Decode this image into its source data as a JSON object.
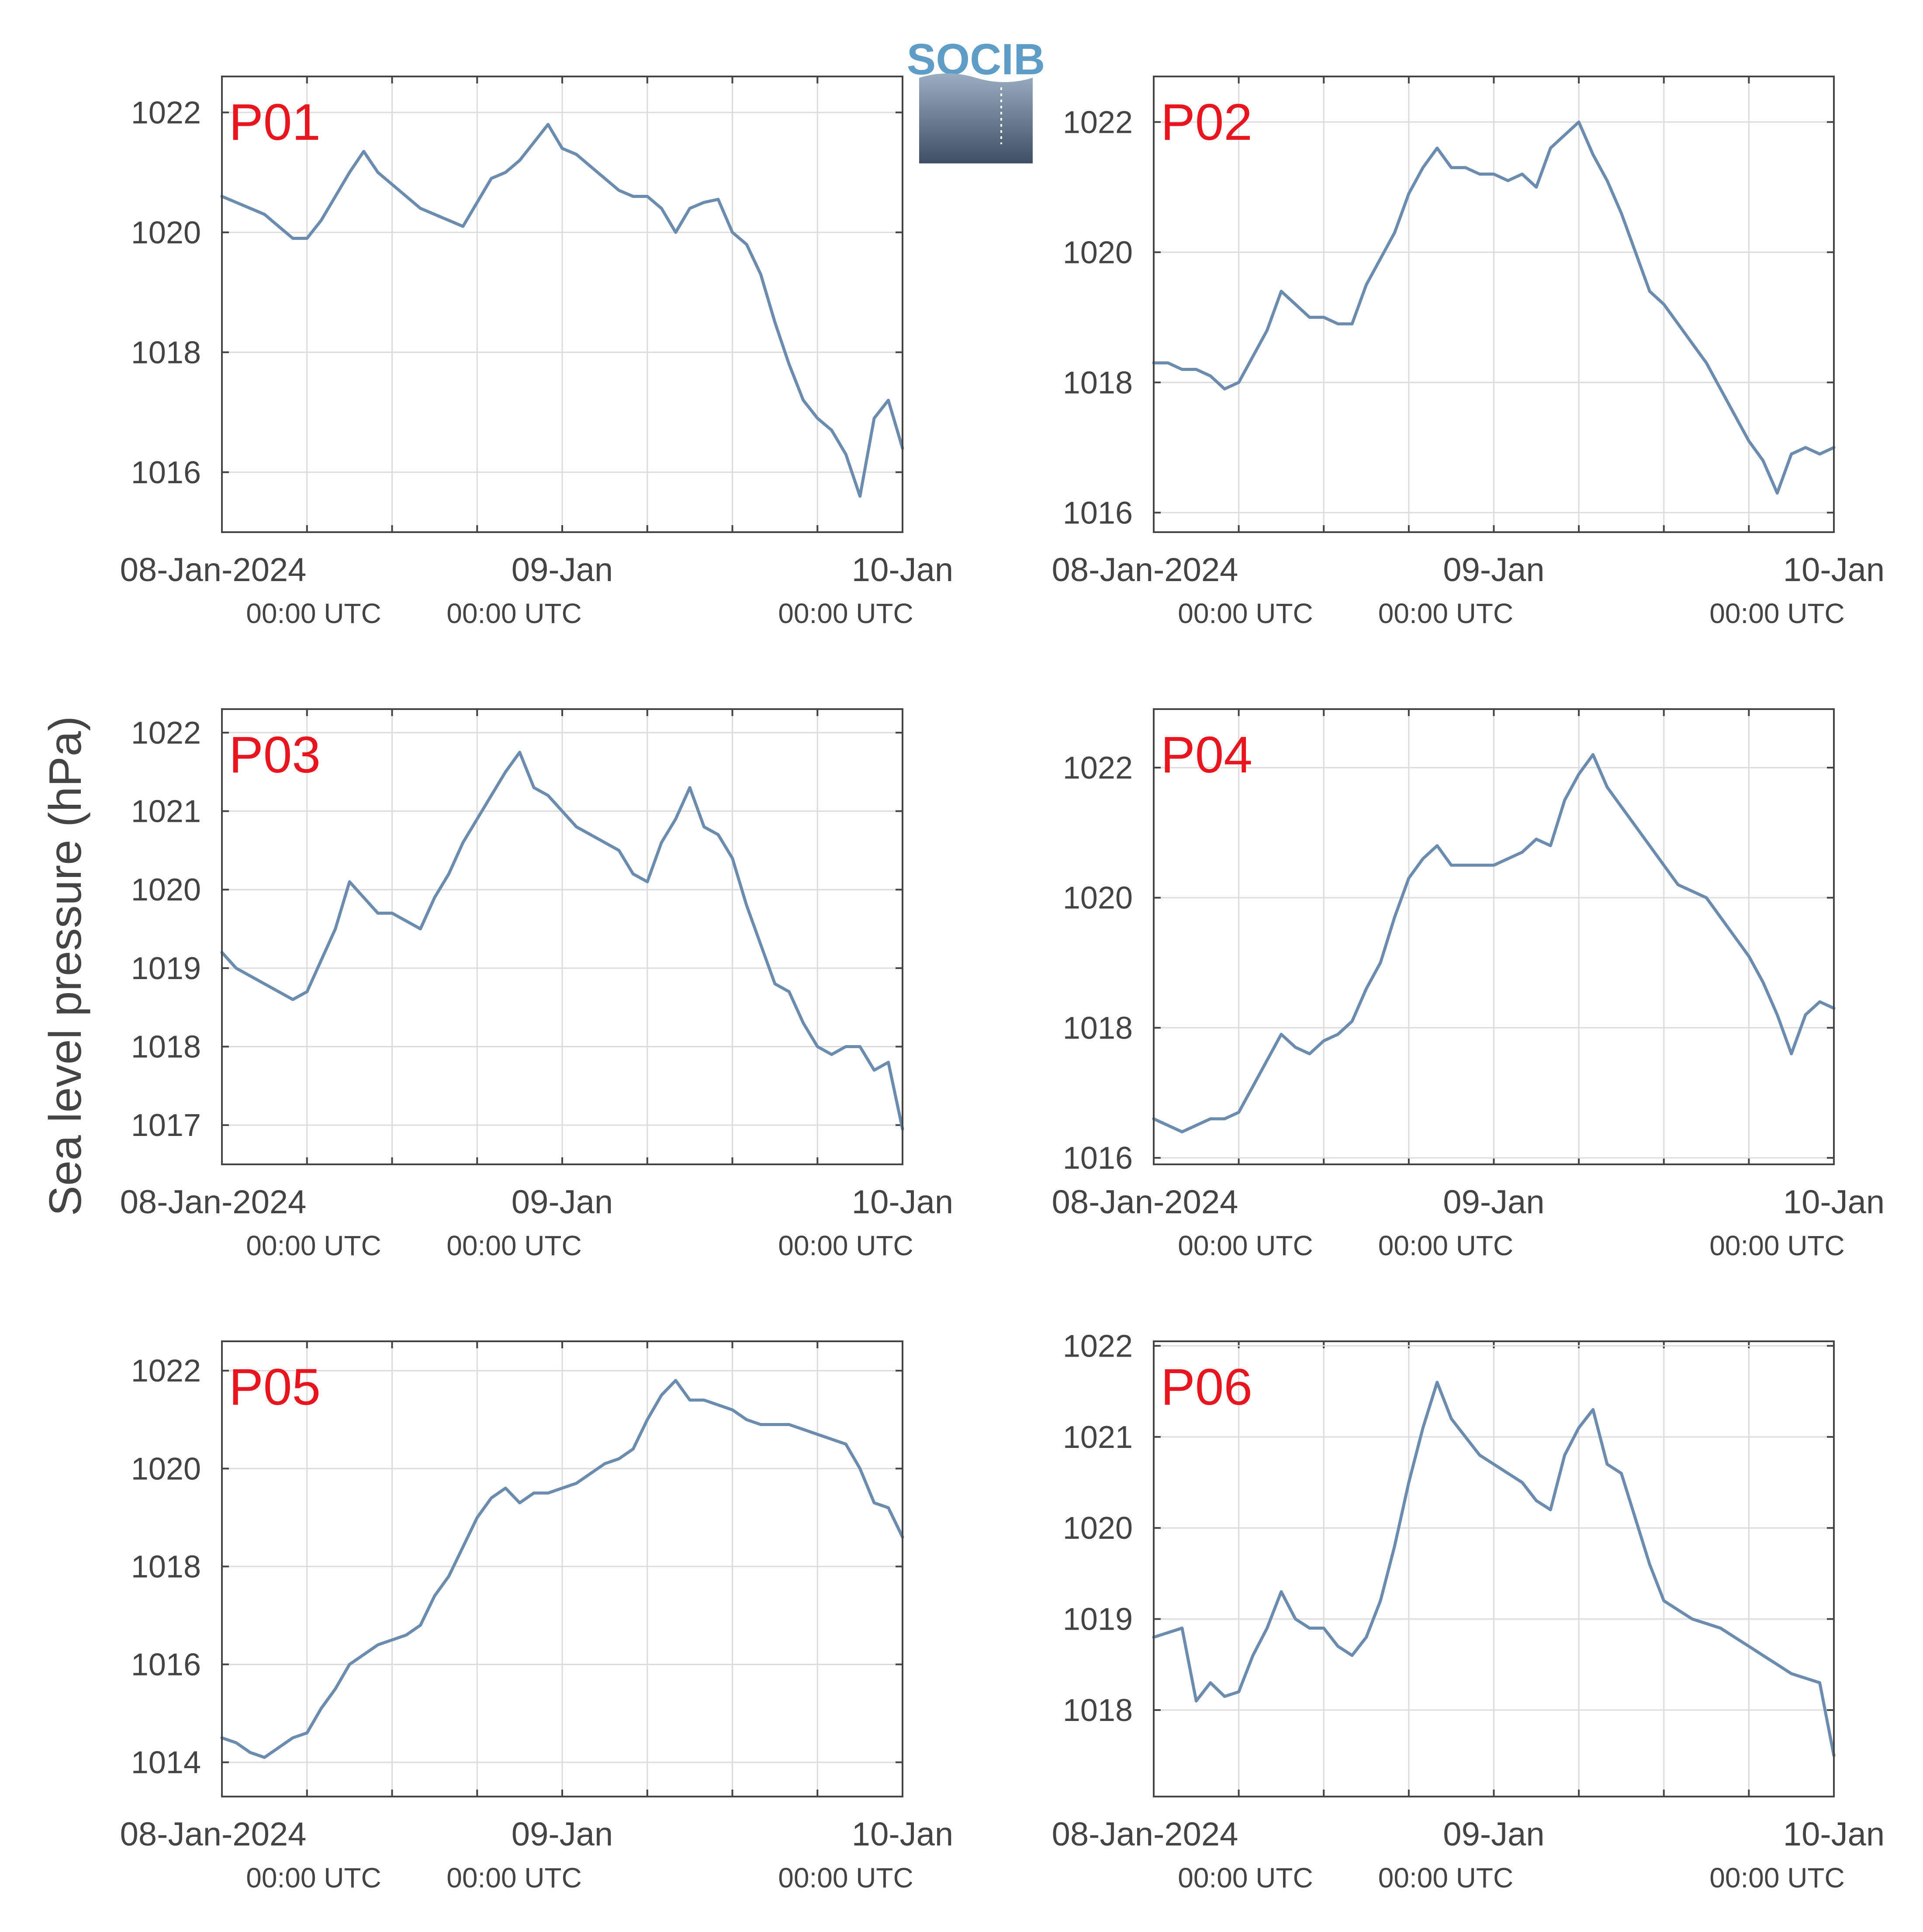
{
  "figure": {
    "ylabel": "Sea level pressure (hPa)",
    "logo_text": "SOCIB",
    "x_tick_labels": [
      "08-Jan-2024",
      "09-Jan",
      "10-Jan"
    ],
    "x_tick_sublabels": [
      "00:00 UTC",
      "00:00 UTC",
      "00:00 UTC"
    ],
    "colors": {
      "line": "#6b8cae",
      "panel_label": "#e8141e",
      "grid": "#dcdcdc",
      "axis": "#444444",
      "text": "#444444"
    }
  },
  "chart_data": [
    {
      "type": "line",
      "label": "P01",
      "xlim": [
        "2024-01-08T00:00Z",
        "2024-01-10T00:00Z"
      ],
      "ylim": [
        1015.0,
        1022.6
      ],
      "yticks": [
        1016,
        1018,
        1020,
        1022
      ],
      "grid": true,
      "series": [
        {
          "x_hours": [
            0,
            1,
            2,
            3,
            4,
            5,
            6,
            7,
            8,
            9,
            10,
            11,
            12,
            13,
            14,
            15,
            16,
            17,
            18,
            19,
            20,
            21,
            22,
            23,
            24,
            25,
            26,
            27,
            28,
            29,
            30,
            31,
            32,
            33,
            34,
            35,
            36,
            37,
            38,
            39,
            40,
            41,
            42,
            43,
            44,
            45,
            46,
            47,
            48
          ],
          "values": [
            1020.6,
            1020.5,
            1020.4,
            1020.3,
            1020.1,
            1019.9,
            1019.9,
            1020.2,
            1020.6,
            1021.0,
            1021.35,
            1021.0,
            1020.8,
            1020.6,
            1020.4,
            1020.3,
            1020.2,
            1020.1,
            1020.5,
            1020.9,
            1021.0,
            1021.2,
            1021.5,
            1021.8,
            1021.4,
            1021.3,
            1021.1,
            1020.9,
            1020.7,
            1020.6,
            1020.6,
            1020.4,
            1020.0,
            1020.4,
            1020.5,
            1020.55,
            1020.0,
            1019.8,
            1019.3,
            1018.5,
            1017.8,
            1017.2,
            1016.9,
            1016.7,
            1016.3,
            1015.6,
            1016.9,
            1017.2,
            1016.4
          ]
        }
      ]
    },
    {
      "type": "line",
      "label": "P02",
      "xlim": [
        "2024-01-08T00:00Z",
        "2024-01-10T00:00Z"
      ],
      "ylim": [
        1015.7,
        1022.7
      ],
      "yticks": [
        1016,
        1018,
        1020,
        1022
      ],
      "grid": true,
      "series": [
        {
          "x_hours": [
            0,
            1,
            2,
            3,
            4,
            5,
            6,
            7,
            8,
            9,
            10,
            11,
            12,
            13,
            14,
            15,
            16,
            17,
            18,
            19,
            20,
            21,
            22,
            23,
            24,
            25,
            26,
            27,
            28,
            29,
            30,
            31,
            32,
            33,
            34,
            35,
            36,
            37,
            38,
            39,
            40,
            41,
            42,
            43,
            44,
            45,
            46,
            47,
            48
          ],
          "values": [
            1018.3,
            1018.3,
            1018.2,
            1018.2,
            1018.1,
            1017.9,
            1018.0,
            1018.4,
            1018.8,
            1019.4,
            1019.2,
            1019.0,
            1019.0,
            1018.9,
            1018.9,
            1019.5,
            1019.9,
            1020.3,
            1020.9,
            1021.3,
            1021.6,
            1021.3,
            1021.3,
            1021.2,
            1021.2,
            1021.1,
            1021.2,
            1021.0,
            1021.6,
            1021.8,
            1022.0,
            1021.5,
            1021.1,
            1020.6,
            1020.0,
            1019.4,
            1019.2,
            1018.9,
            1018.6,
            1018.3,
            1017.9,
            1017.5,
            1017.1,
            1016.8,
            1016.3,
            1016.9,
            1017.0,
            1016.9,
            1017.0
          ]
        }
      ]
    },
    {
      "type": "line",
      "label": "P03",
      "xlim": [
        "2024-01-08T00:00Z",
        "2024-01-10T00:00Z"
      ],
      "ylim": [
        1016.5,
        1022.3
      ],
      "yticks": [
        1017,
        1018,
        1019,
        1020,
        1021,
        1022
      ],
      "grid": true,
      "series": [
        {
          "x_hours": [
            0,
            1,
            2,
            3,
            4,
            5,
            6,
            7,
            8,
            9,
            10,
            11,
            12,
            13,
            14,
            15,
            16,
            17,
            18,
            19,
            20,
            21,
            22,
            23,
            24,
            25,
            26,
            27,
            28,
            29,
            30,
            31,
            32,
            33,
            34,
            35,
            36,
            37,
            38,
            39,
            40,
            41,
            42,
            43,
            44,
            45,
            46,
            47,
            48
          ],
          "values": [
            1019.2,
            1019.0,
            1018.9,
            1018.8,
            1018.7,
            1018.6,
            1018.7,
            1019.1,
            1019.5,
            1020.1,
            1019.9,
            1019.7,
            1019.7,
            1019.6,
            1019.5,
            1019.9,
            1020.2,
            1020.6,
            1020.9,
            1021.2,
            1021.5,
            1021.75,
            1021.3,
            1021.2,
            1021.0,
            1020.8,
            1020.7,
            1020.6,
            1020.5,
            1020.2,
            1020.1,
            1020.6,
            1020.9,
            1021.3,
            1020.8,
            1020.7,
            1020.4,
            1019.8,
            1019.3,
            1018.8,
            1018.7,
            1018.3,
            1018.0,
            1017.9,
            1018.0,
            1018.0,
            1017.7,
            1017.8,
            1016.95
          ]
        }
      ]
    },
    {
      "type": "line",
      "label": "P04",
      "xlim": [
        "2024-01-08T00:00Z",
        "2024-01-10T00:00Z"
      ],
      "ylim": [
        1015.9,
        1022.9
      ],
      "yticks": [
        1016,
        1018,
        1020,
        1022
      ],
      "grid": true,
      "series": [
        {
          "x_hours": [
            0,
            1,
            2,
            3,
            4,
            5,
            6,
            7,
            8,
            9,
            10,
            11,
            12,
            13,
            14,
            15,
            16,
            17,
            18,
            19,
            20,
            21,
            22,
            23,
            24,
            25,
            26,
            27,
            28,
            29,
            30,
            31,
            32,
            33,
            34,
            35,
            36,
            37,
            38,
            39,
            40,
            41,
            42,
            43,
            44,
            45,
            46,
            47,
            48
          ],
          "values": [
            1016.6,
            1016.5,
            1016.4,
            1016.5,
            1016.6,
            1016.6,
            1016.7,
            1017.1,
            1017.5,
            1017.9,
            1017.7,
            1017.6,
            1017.8,
            1017.9,
            1018.1,
            1018.6,
            1019.0,
            1019.7,
            1020.3,
            1020.6,
            1020.8,
            1020.5,
            1020.5,
            1020.5,
            1020.5,
            1020.6,
            1020.7,
            1020.9,
            1020.8,
            1021.5,
            1021.9,
            1022.2,
            1021.7,
            1021.4,
            1021.1,
            1020.8,
            1020.5,
            1020.2,
            1020.1,
            1020.0,
            1019.7,
            1019.4,
            1019.1,
            1018.7,
            1018.2,
            1017.6,
            1018.2,
            1018.4,
            1018.3
          ]
        }
      ]
    },
    {
      "type": "line",
      "label": "P05",
      "xlim": [
        "2024-01-08T00:00Z",
        "2024-01-10T00:00Z"
      ],
      "ylim": [
        1013.3,
        1022.6
      ],
      "yticks": [
        1014,
        1016,
        1018,
        1020,
        1022
      ],
      "grid": true,
      "series": [
        {
          "x_hours": [
            0,
            1,
            2,
            3,
            4,
            5,
            6,
            7,
            8,
            9,
            10,
            11,
            12,
            13,
            14,
            15,
            16,
            17,
            18,
            19,
            20,
            21,
            22,
            23,
            24,
            25,
            26,
            27,
            28,
            29,
            30,
            31,
            32,
            33,
            34,
            35,
            36,
            37,
            38,
            39,
            40,
            41,
            42,
            43,
            44,
            45,
            46,
            47,
            48
          ],
          "values": [
            1014.5,
            1014.4,
            1014.2,
            1014.1,
            1014.3,
            1014.5,
            1014.6,
            1015.1,
            1015.5,
            1016.0,
            1016.2,
            1016.4,
            1016.5,
            1016.6,
            1016.8,
            1017.4,
            1017.8,
            1018.4,
            1019.0,
            1019.4,
            1019.6,
            1019.3,
            1019.5,
            1019.5,
            1019.6,
            1019.7,
            1019.9,
            1020.1,
            1020.2,
            1020.4,
            1021.0,
            1021.5,
            1021.8,
            1021.4,
            1021.4,
            1021.3,
            1021.2,
            1021.0,
            1020.9,
            1020.9,
            1020.9,
            1020.8,
            1020.7,
            1020.6,
            1020.5,
            1020.0,
            1019.3,
            1019.2,
            1018.6
          ]
        }
      ]
    },
    {
      "type": "line",
      "label": "P06",
      "xlim": [
        "2024-01-08T00:00Z",
        "2024-01-10T00:00Z"
      ],
      "ylim": [
        1017.05,
        1022.05
      ],
      "yticks": [
        1018,
        1019,
        1020,
        1021,
        1022
      ],
      "grid": true,
      "series": [
        {
          "x_hours": [
            0,
            1,
            2,
            3,
            4,
            5,
            6,
            7,
            8,
            9,
            10,
            11,
            12,
            13,
            14,
            15,
            16,
            17,
            18,
            19,
            20,
            21,
            22,
            23,
            24,
            25,
            26,
            27,
            28,
            29,
            30,
            31,
            32,
            33,
            34,
            35,
            36,
            37,
            38,
            39,
            40,
            41,
            42,
            43,
            44,
            45,
            46,
            47,
            48
          ],
          "values": [
            1018.8,
            1018.85,
            1018.9,
            1018.1,
            1018.3,
            1018.15,
            1018.2,
            1018.6,
            1018.9,
            1019.3,
            1019.0,
            1018.9,
            1018.9,
            1018.7,
            1018.6,
            1018.8,
            1019.2,
            1019.8,
            1020.5,
            1021.1,
            1021.6,
            1021.2,
            1021.0,
            1020.8,
            1020.7,
            1020.6,
            1020.5,
            1020.3,
            1020.2,
            1020.8,
            1021.1,
            1021.3,
            1020.7,
            1020.6,
            1020.1,
            1019.6,
            1019.2,
            1019.1,
            1019.0,
            1018.95,
            1018.9,
            1018.8,
            1018.7,
            1018.6,
            1018.5,
            1018.4,
            1018.35,
            1018.3,
            1017.5
          ]
        }
      ]
    }
  ]
}
